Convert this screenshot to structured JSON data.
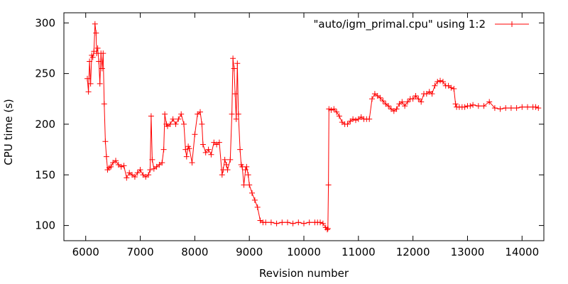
{
  "chart_data": {
    "type": "line",
    "xlabel": "Revision number",
    "ylabel": "CPU time (s)",
    "xlim": [
      5600,
      14400
    ],
    "ylim": [
      85,
      310
    ],
    "xticks": [
      6000,
      7000,
      8000,
      9000,
      10000,
      11000,
      12000,
      13000,
      14000
    ],
    "xtick_labels": [
      "6000",
      "7000",
      "8000",
      "9000",
      "10000",
      "11000",
      "12000",
      "13000",
      "14000"
    ],
    "yticks": [
      100,
      150,
      200,
      250,
      300
    ],
    "ytick_labels": [
      "100",
      "150",
      "200",
      "250",
      "300"
    ],
    "grid": false,
    "legend_position": "top-right",
    "marker": "plus",
    "series": [
      {
        "name": "\"auto/igm_primal.cpu\" using 1:2",
        "color": "#ff0000",
        "x": [
          6030,
          6050,
          6070,
          6090,
          6110,
          6130,
          6150,
          6170,
          6190,
          6200,
          6220,
          6240,
          6260,
          6280,
          6300,
          6320,
          6340,
          6360,
          6380,
          6400,
          6430,
          6460,
          6500,
          6550,
          6600,
          6650,
          6700,
          6750,
          6800,
          6850,
          6900,
          6950,
          7000,
          7050,
          7100,
          7150,
          7180,
          7200,
          7220,
          7250,
          7300,
          7350,
          7400,
          7430,
          7450,
          7480,
          7500,
          7550,
          7600,
          7650,
          7700,
          7750,
          7800,
          7830,
          7850,
          7880,
          7900,
          7950,
          8000,
          8050,
          8100,
          8130,
          8150,
          8200,
          8250,
          8300,
          8350,
          8400,
          8450,
          8500,
          8520,
          8550,
          8580,
          8600,
          8650,
          8680,
          8700,
          8720,
          8740,
          8760,
          8780,
          8800,
          8830,
          8850,
          8870,
          8900,
          8930,
          8950,
          8980,
          9000,
          9050,
          9100,
          9150,
          9200,
          9250,
          9300,
          9400,
          9500,
          9600,
          9700,
          9800,
          9900,
          10000,
          10100,
          10200,
          10250,
          10300,
          10350,
          10400,
          10430,
          10440,
          10450,
          10460,
          10500,
          10550,
          10600,
          10650,
          10700,
          10750,
          10800,
          10850,
          10900,
          10950,
          11000,
          11050,
          11100,
          11150,
          11200,
          11250,
          11300,
          11350,
          11400,
          11450,
          11500,
          11550,
          11600,
          11650,
          11700,
          11750,
          11800,
          11850,
          11900,
          11950,
          12000,
          12050,
          12100,
          12150,
          12200,
          12250,
          12300,
          12350,
          12400,
          12450,
          12500,
          12550,
          12600,
          12650,
          12700,
          12750,
          12780,
          12800,
          12850,
          12900,
          12950,
          13000,
          13050,
          13100,
          13200,
          13300,
          13400,
          13500,
          13600,
          13700,
          13800,
          13900,
          14000,
          14100,
          14200,
          14250,
          14300
        ],
        "y": [
          245,
          232,
          262,
          240,
          268,
          266,
          272,
          299,
          290,
          270,
          275,
          262,
          240,
          270,
          255,
          270,
          220,
          183,
          168,
          155,
          157,
          158,
          162,
          164,
          160,
          158,
          159,
          147,
          152,
          150,
          148,
          152,
          155,
          150,
          148,
          150,
          155,
          208,
          165,
          156,
          158,
          160,
          162,
          175,
          210,
          200,
          198,
          200,
          205,
          200,
          205,
          210,
          200,
          175,
          168,
          178,
          176,
          162,
          190,
          210,
          212,
          200,
          180,
          172,
          175,
          170,
          182,
          180,
          182,
          150,
          155,
          165,
          160,
          155,
          165,
          210,
          265,
          255,
          230,
          205,
          260,
          210,
          175,
          160,
          158,
          140,
          155,
          158,
          150,
          140,
          132,
          125,
          118,
          105,
          103,
          103,
          103,
          102,
          103,
          103,
          102,
          103,
          102,
          103,
          103,
          103,
          103,
          102,
          98,
          96,
          97,
          140,
          215,
          214,
          215,
          212,
          208,
          202,
          200,
          200,
          203,
          205,
          204,
          205,
          207,
          205,
          205,
          205,
          225,
          230,
          228,
          226,
          223,
          220,
          218,
          215,
          213,
          215,
          220,
          222,
          218,
          222,
          225,
          225,
          228,
          225,
          222,
          230,
          230,
          232,
          230,
          238,
          242,
          243,
          242,
          238,
          238,
          236,
          235,
          220,
          217,
          217,
          217,
          217,
          218,
          218,
          219,
          218,
          218,
          222,
          216,
          215,
          216,
          216,
          216,
          217,
          217,
          217,
          217,
          216
        ]
      }
    ]
  }
}
